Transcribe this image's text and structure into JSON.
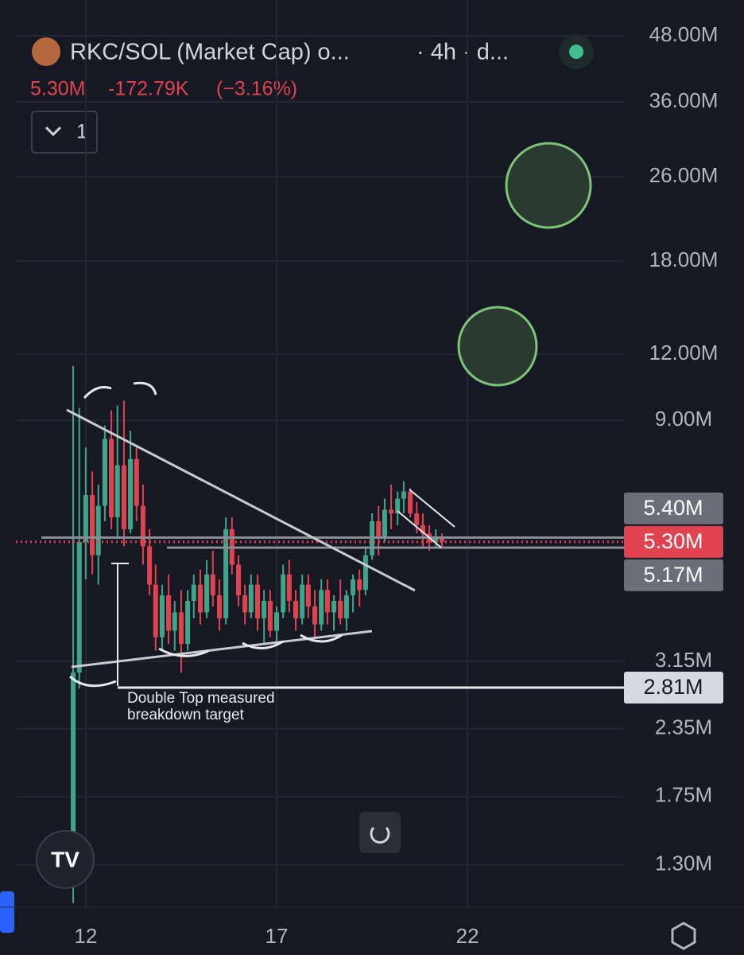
{
  "header": {
    "title": "RKC/SOL (Market Cap) o...",
    "interval": "· 4h · d...",
    "price": "5.30M",
    "change": "-172.79K",
    "change_pct": "(−3.16%)",
    "indicator_count": "1"
  },
  "chart": {
    "type": "candlestick",
    "log_scale": true,
    "ylim": [
      1.08,
      56.1
    ],
    "yticks": [
      {
        "value": 48,
        "label": "48.00M"
      },
      {
        "value": 36,
        "label": "36.00M"
      },
      {
        "value": 26,
        "label": "26.00M"
      },
      {
        "value": 18,
        "label": "18.00M"
      },
      {
        "value": 12,
        "label": "12.00M"
      },
      {
        "value": 9,
        "label": "9.00M"
      },
      {
        "value": 3.15,
        "label": "3.15M"
      },
      {
        "value": 2.35,
        "label": "2.35M"
      },
      {
        "value": 1.75,
        "label": "1.75M"
      },
      {
        "value": 1.3,
        "label": "1.30M"
      }
    ],
    "xlim": [
      10.17,
      26.1
    ],
    "xticks": [
      12,
      17,
      22
    ],
    "up_color": "#3fa58a",
    "down_color": "#e0434f",
    "x": [
      11.67,
      11.83,
      12,
      12.17,
      12.33,
      12.5,
      12.67,
      12.83,
      13,
      13.17,
      13.33,
      13.5,
      13.67,
      13.83,
      14,
      14.17,
      14.33,
      14.5,
      14.67,
      14.83,
      15,
      15.17,
      15.33,
      15.5,
      15.67,
      15.83,
      16,
      16.17,
      16.33,
      16.5,
      16.67,
      16.83,
      17,
      17.17,
      17.33,
      17.5,
      17.67,
      17.83,
      18,
      18.17,
      18.33,
      18.5,
      18.67,
      18.83,
      19,
      19.17,
      19.33,
      19.5,
      19.67,
      19.83,
      20,
      20.17,
      20.33,
      20.5,
      20.67,
      20.83,
      21,
      21.17,
      21.33
    ],
    "open": [
      1.2,
      3.0,
      5.3,
      6.5,
      5.0,
      6.2,
      8.3,
      5.9,
      7.4,
      5.6,
      7.6,
      6.2,
      5.2,
      4.4,
      3.5,
      4.2,
      3.6,
      3.9,
      3.4,
      4.1,
      4.4,
      3.9,
      4.6,
      4.2,
      3.8,
      5.6,
      4.8,
      4.2,
      3.9,
      4.4,
      3.8,
      4.1,
      3.6,
      3.9,
      4.6,
      4.1,
      3.8,
      4.4,
      4.0,
      3.7,
      4.3,
      3.9,
      4.1,
      3.8,
      4.2,
      4.5,
      4.3,
      5.0,
      5.8,
      5.4,
      6.1,
      6.0,
      6.4,
      6.6,
      6.0,
      5.7,
      5.5,
      5.3,
      5.4
    ],
    "high": [
      11.4,
      9.5,
      8.0,
      7.2,
      6.8,
      8.8,
      9.4,
      9.6,
      9.8,
      8.6,
      8.0,
      6.8,
      5.6,
      4.8,
      4.4,
      4.6,
      4.1,
      4.3,
      4.3,
      4.6,
      4.7,
      4.9,
      5.1,
      4.5,
      5.9,
      5.9,
      5.0,
      4.4,
      4.6,
      4.6,
      4.3,
      4.3,
      4.0,
      4.8,
      4.9,
      4.3,
      4.6,
      4.6,
      4.3,
      4.5,
      4.5,
      4.2,
      4.5,
      4.3,
      4.6,
      4.7,
      5.2,
      6.0,
      6.2,
      6.4,
      6.8,
      6.6,
      6.9,
      6.7,
      6.3,
      6.0,
      5.7,
      5.6,
      5.5
    ],
    "low": [
      1.1,
      2.8,
      4.5,
      4.6,
      4.4,
      5.8,
      5.6,
      5.4,
      5.2,
      5.5,
      5.8,
      4.8,
      4.2,
      3.3,
      3.3,
      3.4,
      3.3,
      3.0,
      3.3,
      3.8,
      3.7,
      3.8,
      4.0,
      3.6,
      3.7,
      4.6,
      4.0,
      3.7,
      3.8,
      3.6,
      3.4,
      3.5,
      3.4,
      3.8,
      3.9,
      3.6,
      3.7,
      3.8,
      3.5,
      3.6,
      3.7,
      3.6,
      3.7,
      3.6,
      3.9,
      4.0,
      4.2,
      4.9,
      5.0,
      5.3,
      5.6,
      5.7,
      6.0,
      5.9,
      5.5,
      5.2,
      5.1,
      5.2,
      5.2
    ],
    "close": [
      3.0,
      5.3,
      6.5,
      5.0,
      6.2,
      8.3,
      5.9,
      7.4,
      5.6,
      7.6,
      6.2,
      5.2,
      4.4,
      3.5,
      4.2,
      3.6,
      3.9,
      3.4,
      4.1,
      4.4,
      3.9,
      4.6,
      4.2,
      3.8,
      5.6,
      4.8,
      4.2,
      3.9,
      4.4,
      3.8,
      4.1,
      3.6,
      3.9,
      4.6,
      4.1,
      3.8,
      4.4,
      4.0,
      3.7,
      4.3,
      3.9,
      4.1,
      3.8,
      4.2,
      4.5,
      4.3,
      5.0,
      5.8,
      5.4,
      6.1,
      6.0,
      6.4,
      6.6,
      6.0,
      5.7,
      5.5,
      5.3,
      5.4,
      5.3
    ],
    "price_tags": [
      {
        "value": 5.4,
        "label": "5.40M"
      },
      {
        "value": 5.3,
        "label": "5.30M"
      },
      {
        "value": 5.17,
        "label": "5.17M"
      },
      {
        "value": 2.81,
        "label": "2.81M"
      }
    ],
    "annotation": [
      "Double Top measured",
      "breakdown target"
    ]
  }
}
